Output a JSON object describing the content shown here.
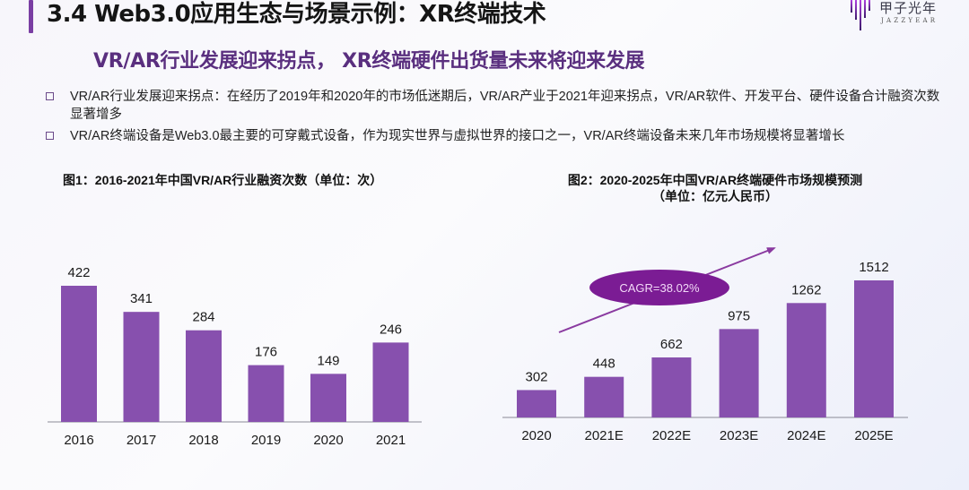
{
  "header": {
    "title": "3.4 Web3.0应用生态与场景示例：XR终端技术",
    "accent_color": "#7a3ea3"
  },
  "logo": {
    "cn": "甲子光年",
    "en": "JAZZYEAR",
    "icon": "jazzyear-logo-icon"
  },
  "subtitle": "VR/AR行业发展迎来拐点， XR终端硬件出货量未来将迎来发展",
  "bullets": [
    {
      "icon": "square-bullet-icon",
      "text": "VR/AR行业发展迎来拐点：在经历了2019年和2020年的市场低迷期后，VR/AR产业于2021年迎来拐点，VR/AR软件、开发平台、硬件设备合计融资次数显著增多"
    },
    {
      "icon": "square-bullet-icon",
      "text": "VR/AR终端设备是Web3.0最主要的可穿戴式设备，作为现实世界与虚拟世界的接口之一，VR/AR终端设备未来几年市场规模将显著增长"
    }
  ],
  "colors": {
    "bar": "#8750ae",
    "ellipse": "#7b1c94",
    "arrow": "#8a3aa0"
  },
  "chart_data": [
    {
      "type": "bar",
      "title": "图1：2016-2021年中国VR/AR行业融资次数（单位：次）",
      "categories": [
        "2016",
        "2017",
        "2018",
        "2019",
        "2020",
        "2021"
      ],
      "values": [
        422,
        341,
        284,
        176,
        149,
        246
      ],
      "xlabel": "",
      "ylabel": "",
      "ylim": [
        0,
        450
      ],
      "grid": false,
      "data_labels": true
    },
    {
      "type": "bar",
      "title": "图2：2020-2025年中国VR/AR终端硬件市场规模预测",
      "title_line2": "（单位：亿元人民币）",
      "categories": [
        "2020",
        "2021E",
        "2022E",
        "2023E",
        "2024E",
        "2025E"
      ],
      "values": [
        302,
        448,
        662,
        975,
        1262,
        1512
      ],
      "xlabel": "",
      "ylabel": "",
      "ylim": [
        0,
        1600
      ],
      "grid": false,
      "data_labels": true,
      "annotation": "CAGR=38.02%"
    }
  ]
}
